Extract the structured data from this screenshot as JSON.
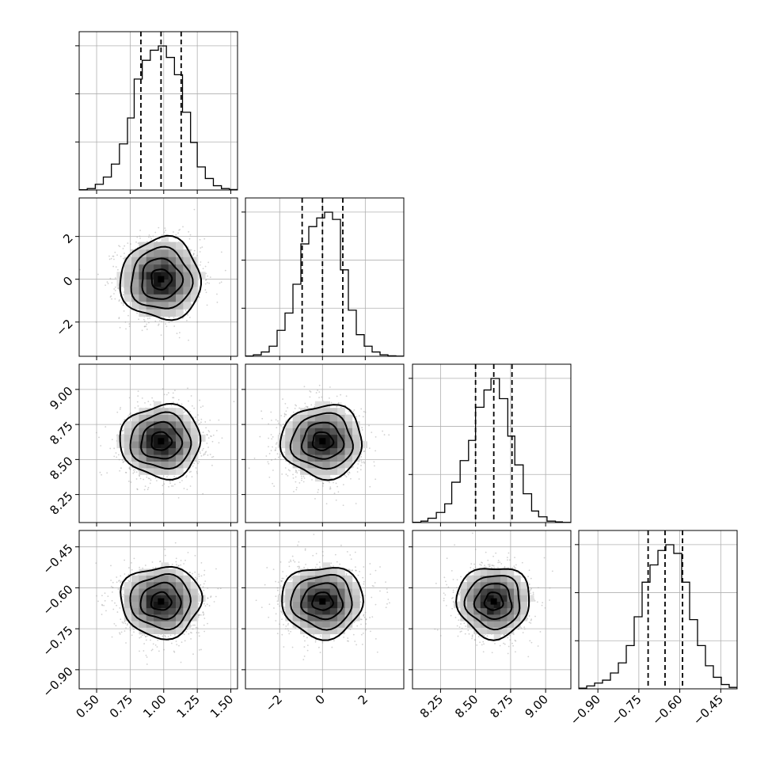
{
  "chart_data": {
    "type": "corner",
    "parameters": [
      {
        "ticks": [
          0.5,
          0.75,
          1.0,
          1.25,
          1.5
        ],
        "tick_labels": [
          "0.50",
          "0.75",
          "1.00",
          "1.25",
          "1.50"
        ],
        "range": [
          0.37,
          1.55
        ],
        "mean": 0.98,
        "sigma": 0.15,
        "quantiles": [
          0.83,
          0.98,
          1.13
        ],
        "hist_bins": [
          0.37,
          0.43,
          0.49,
          0.55,
          0.61,
          0.67,
          0.73,
          0.78,
          0.84,
          0.9,
          0.96,
          1.02,
          1.08,
          1.14,
          1.2,
          1.25,
          1.31,
          1.37,
          1.43,
          1.49,
          1.55
        ],
        "hist_counts": [
          0.002,
          0.01,
          0.04,
          0.09,
          0.18,
          0.32,
          0.5,
          0.77,
          0.9,
          0.97,
          1.0,
          0.92,
          0.8,
          0.54,
          0.33,
          0.16,
          0.08,
          0.03,
          0.01,
          0.003
        ]
      },
      {
        "ticks": [
          -2,
          0,
          2
        ],
        "tick_labels": [
          "−2",
          "0",
          "2"
        ],
        "range": [
          -3.6,
          3.8
        ],
        "mean": 0.0,
        "sigma": 0.95,
        "quantiles": [
          -0.95,
          0.0,
          0.95
        ],
        "hist_bins": [
          -3.6,
          -3.23,
          -2.86,
          -2.49,
          -2.12,
          -1.75,
          -1.38,
          -1.01,
          -0.64,
          -0.27,
          0.1,
          0.47,
          0.84,
          1.21,
          1.58,
          1.95,
          2.32,
          2.69,
          3.06,
          3.43,
          3.8
        ],
        "hist_counts": [
          0.002,
          0.01,
          0.03,
          0.07,
          0.18,
          0.3,
          0.5,
          0.78,
          0.9,
          0.96,
          1.0,
          0.95,
          0.6,
          0.32,
          0.15,
          0.07,
          0.03,
          0.01,
          0.003,
          0.001
        ]
      },
      {
        "ticks": [
          8.25,
          8.5,
          8.75,
          9.0
        ],
        "tick_labels": [
          "8.25",
          "8.50",
          "8.75",
          "9.00"
        ],
        "range": [
          8.05,
          9.18
        ],
        "mean": 8.63,
        "sigma": 0.13,
        "quantiles": [
          8.5,
          8.63,
          8.76
        ],
        "hist_bins": [
          8.05,
          8.11,
          8.16,
          8.22,
          8.28,
          8.33,
          8.39,
          8.45,
          8.5,
          8.56,
          8.61,
          8.67,
          8.73,
          8.78,
          8.84,
          8.9,
          8.95,
          9.01,
          9.07,
          9.12,
          9.18
        ],
        "hist_counts": [
          0.002,
          0.01,
          0.03,
          0.07,
          0.13,
          0.28,
          0.43,
          0.57,
          0.8,
          0.92,
          1.0,
          0.86,
          0.6,
          0.4,
          0.2,
          0.08,
          0.04,
          0.01,
          0.005,
          0.001
        ]
      },
      {
        "ticks": [
          -0.9,
          -0.75,
          -0.6,
          -0.45
        ],
        "tick_labels": [
          "−0.90",
          "−0.75",
          "−0.60",
          "−0.45"
        ],
        "range": [
          -0.97,
          -0.39
        ],
        "mean": -0.65,
        "sigma": 0.065,
        "quantiles": [
          -0.716,
          -0.654,
          -0.59
        ],
        "hist_bins": [
          -0.97,
          -0.941,
          -0.912,
          -0.883,
          -0.854,
          -0.825,
          -0.796,
          -0.767,
          -0.738,
          -0.709,
          -0.68,
          -0.651,
          -0.622,
          -0.593,
          -0.564,
          -0.535,
          -0.506,
          -0.477,
          -0.448,
          -0.419,
          -0.39
        ],
        "hist_counts": [
          0.005,
          0.02,
          0.04,
          0.06,
          0.11,
          0.18,
          0.3,
          0.5,
          0.74,
          0.86,
          0.96,
          1.0,
          0.94,
          0.74,
          0.48,
          0.3,
          0.16,
          0.08,
          0.03,
          0.01
        ]
      }
    ],
    "pair_correlation": 0.0,
    "scatter_points_per_panel": 1400,
    "contour_levels_sigma": [
      0.5,
      1.0,
      1.5,
      2.0
    ],
    "hist2d_grid": 12,
    "grid": true
  }
}
